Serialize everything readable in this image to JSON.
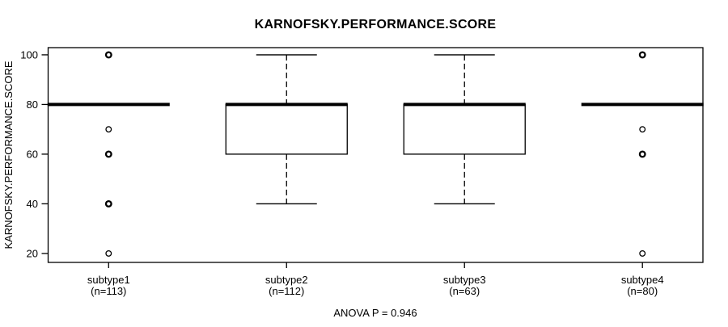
{
  "chart_data": {
    "type": "boxplot",
    "title": "KARNOFSKY.PERFORMANCE.SCORE",
    "ylabel": "KARNOFSKY.PERFORMANCE.SCORE",
    "footer": "ANOVA P = 0.946",
    "yticks": [
      20,
      40,
      60,
      80,
      100
    ],
    "ylim": [
      16.4,
      102.9
    ],
    "grid": false,
    "frame": true,
    "legend": null,
    "colors": {
      "stroke": "#000000",
      "background": "#ffffff"
    },
    "groups": [
      {
        "label": "subtype1",
        "sublabel": "(n=113)",
        "n": 113,
        "q1": 80,
        "median": 80,
        "q3": 80,
        "whisker_low": 80,
        "whisker_high": 80,
        "outliers": [
          {
            "value": 100,
            "weight": "bold"
          },
          {
            "value": 70,
            "weight": "light"
          },
          {
            "value": 60,
            "weight": "bold"
          },
          {
            "value": 40,
            "weight": "bold"
          },
          {
            "value": 20,
            "weight": "light"
          }
        ]
      },
      {
        "label": "subtype2",
        "sublabel": "(n=112)",
        "n": 112,
        "q1": 60,
        "median": 80,
        "q3": 80,
        "whisker_low": 40,
        "whisker_high": 100,
        "outliers": []
      },
      {
        "label": "subtype3",
        "sublabel": "(n=63)",
        "n": 63,
        "q1": 60,
        "median": 80,
        "q3": 80,
        "whisker_low": 40,
        "whisker_high": 100,
        "outliers": []
      },
      {
        "label": "subtype4",
        "sublabel": "(n=80)",
        "n": 80,
        "q1": 80,
        "median": 80,
        "q3": 80,
        "whisker_low": 80,
        "whisker_high": 80,
        "outliers": [
          {
            "value": 100,
            "weight": "bold"
          },
          {
            "value": 70,
            "weight": "light"
          },
          {
            "value": 60,
            "weight": "bold"
          },
          {
            "value": 20,
            "weight": "light"
          }
        ]
      }
    ]
  }
}
